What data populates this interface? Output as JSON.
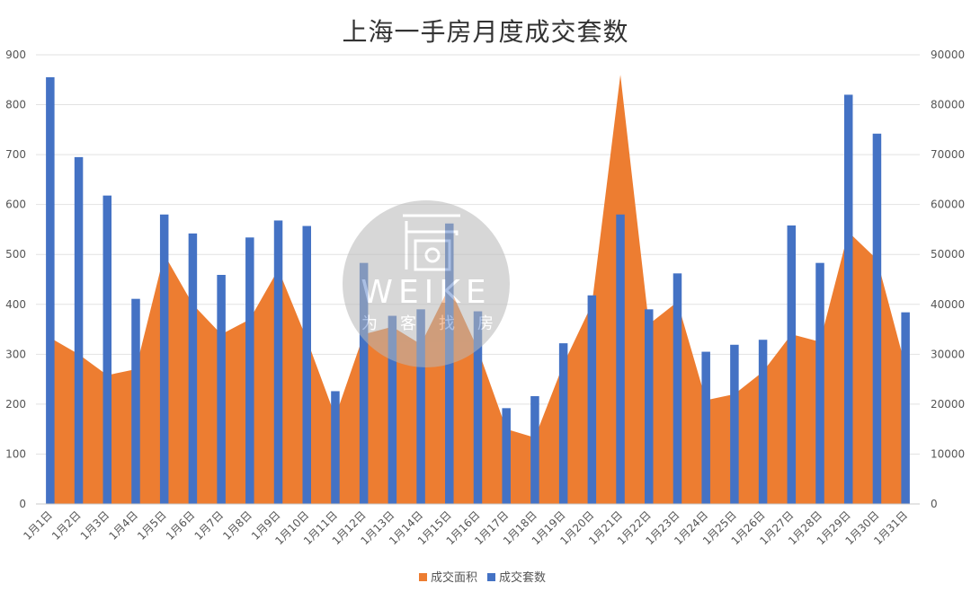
{
  "chart_data": {
    "type": "bar",
    "title": "上海一手房月度成交套数",
    "categories": [
      "1月1日",
      "1月2日",
      "1月3日",
      "1月4日",
      "1月5日",
      "1月6日",
      "1月7日",
      "1月8日",
      "1月9日",
      "1月10日",
      "1月11日",
      "1月12日",
      "1月13日",
      "1月14日",
      "1月15日",
      "1月16日",
      "1月17日",
      "1月18日",
      "1月19日",
      "1月20日",
      "1月21日",
      "1月22日",
      "1月23日",
      "1月24日",
      "1月25日",
      "1月26日",
      "1月27日",
      "1月28日",
      "1月29日",
      "1月30日",
      "1月31日"
    ],
    "series": [
      {
        "name": "成交面积",
        "chart_type": "area",
        "axis": "left",
        "color": "#ED7D31",
        "values": [
          333,
          300,
          258,
          270,
          500,
          400,
          340,
          370,
          470,
          330,
          175,
          340,
          355,
          320,
          435,
          310,
          150,
          133,
          280,
          400,
          860,
          360,
          405,
          208,
          220,
          265,
          340,
          325,
          545,
          490,
          275
        ]
      },
      {
        "name": "成交套数",
        "chart_type": "bar",
        "axis": "right",
        "color": "#4472C4",
        "values": [
          85500,
          69500,
          61800,
          41100,
          58000,
          54200,
          45900,
          53400,
          56800,
          55700,
          22600,
          48300,
          37700,
          39000,
          56200,
          38600,
          19200,
          21600,
          32200,
          41800,
          58000,
          39000,
          46200,
          30500,
          31900,
          32900,
          55800,
          48300,
          82000,
          74200,
          38400
        ]
      }
    ],
    "y_left": {
      "min": 0,
      "max": 900,
      "ticks": [
        0,
        100,
        200,
        300,
        400,
        500,
        600,
        700,
        800,
        900
      ]
    },
    "y_right": {
      "min": 0,
      "max": 90000,
      "ticks": [
        0,
        10000,
        20000,
        30000,
        40000,
        50000,
        60000,
        70000,
        80000,
        90000
      ]
    },
    "grid": true,
    "legend_position": "bottom"
  },
  "watermark": {
    "brand": "WEIKE",
    "tagline": [
      "为",
      "客",
      "找",
      "房"
    ]
  }
}
